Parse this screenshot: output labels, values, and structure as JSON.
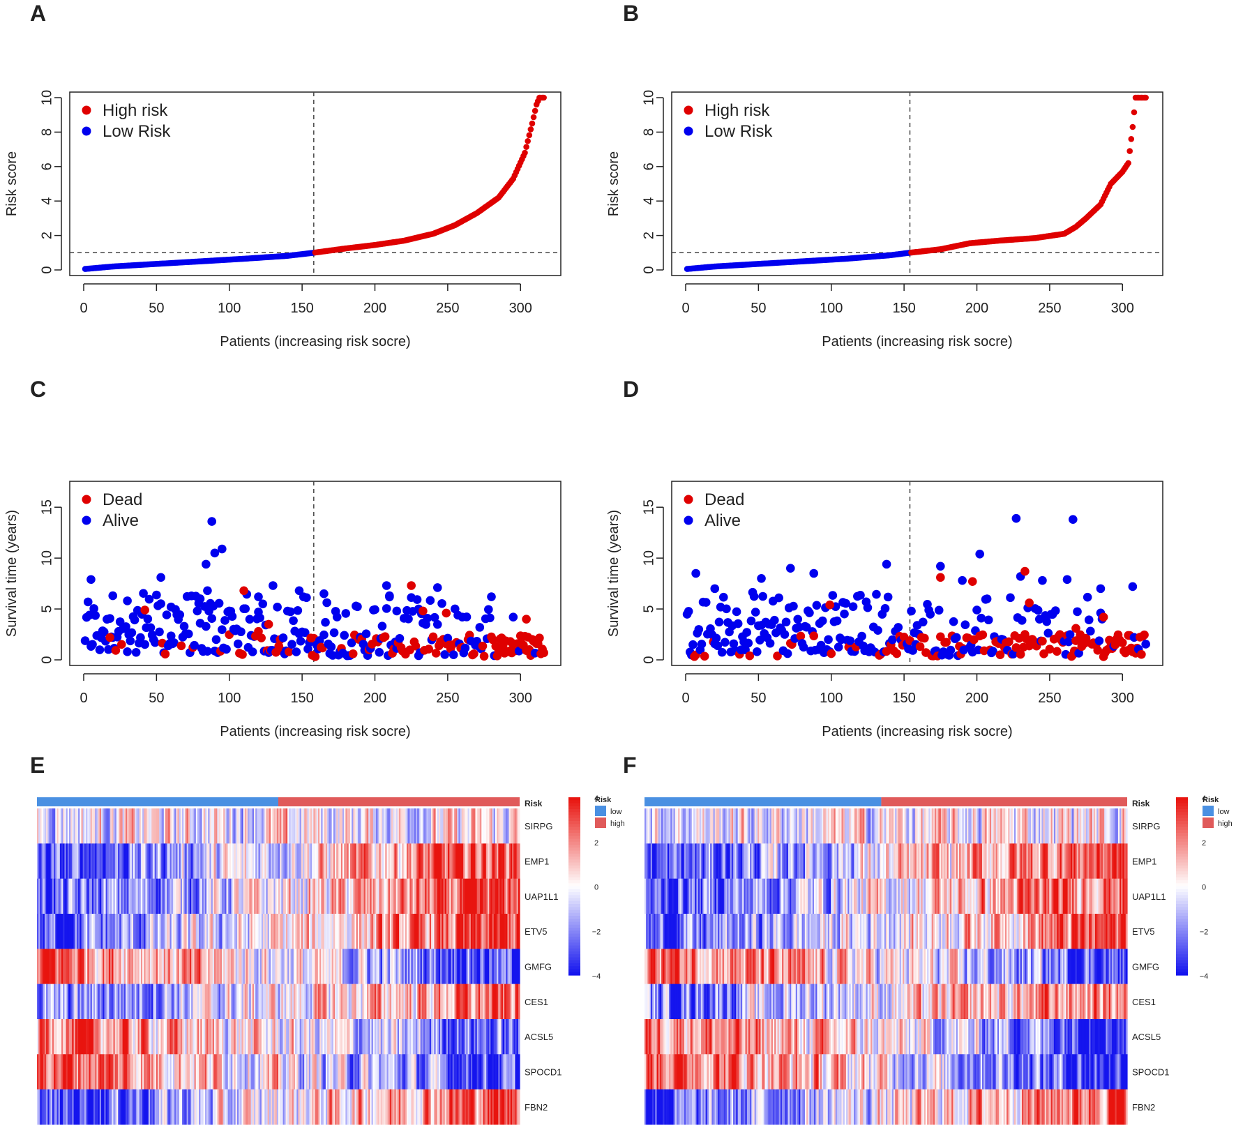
{
  "colors": {
    "high": "#DF0000",
    "low": "#0000EE",
    "risk_low": "#4A90E2",
    "risk_high": "#E05A5A",
    "heat_low": "#1515EE",
    "heat_mid": "#FFFFFF",
    "heat_high": "#E8140F"
  },
  "panels": {
    "A": "A",
    "B": "B",
    "C": "C",
    "D": "D",
    "E": "E",
    "F": "F"
  },
  "chart_data": [
    {
      "panel": "A",
      "type": "scatter",
      "xlabel": "Patients (increasing risk socre)",
      "ylabel": "Risk score",
      "xlim": [
        0,
        320
      ],
      "ylim": [
        0,
        10
      ],
      "xticks": [
        0,
        50,
        100,
        150,
        200,
        250,
        300
      ],
      "yticks": [
        0,
        2,
        4,
        6,
        8,
        10
      ],
      "cutoff_x": 158,
      "cutoff_y": 1.0,
      "legend": [
        "High risk",
        "Low Risk"
      ],
      "series": [
        {
          "name": "Low Risk",
          "x_range": [
            1,
            158
          ],
          "curve": [
            [
              0,
              0.05
            ],
            [
              20,
              0.2
            ],
            [
              50,
              0.35
            ],
            [
              80,
              0.5
            ],
            [
              110,
              0.65
            ],
            [
              140,
              0.82
            ],
            [
              158,
              1.0
            ]
          ]
        },
        {
          "name": "High risk",
          "x_range": [
            159,
            316
          ],
          "curve": [
            [
              158,
              1.0
            ],
            [
              180,
              1.25
            ],
            [
              200,
              1.45
            ],
            [
              220,
              1.7
            ],
            [
              240,
              2.1
            ],
            [
              255,
              2.6
            ],
            [
              270,
              3.3
            ],
            [
              285,
              4.2
            ],
            [
              295,
              5.3
            ],
            [
              303,
              6.8
            ],
            [
              308,
              8.5
            ],
            [
              311,
              9.6
            ],
            [
              313,
              10.0
            ],
            [
              316,
              10.0
            ]
          ]
        }
      ]
    },
    {
      "panel": "B",
      "type": "scatter",
      "xlabel": "Patients (increasing risk socre)",
      "ylabel": "Risk score",
      "xlim": [
        0,
        320
      ],
      "ylim": [
        0,
        10
      ],
      "xticks": [
        0,
        50,
        100,
        150,
        200,
        250,
        300
      ],
      "yticks": [
        0,
        2,
        4,
        6,
        8,
        10
      ],
      "cutoff_x": 154,
      "cutoff_y": 1.0,
      "legend": [
        "High risk",
        "Low Risk"
      ],
      "series": [
        {
          "name": "Low Risk",
          "x_range": [
            1,
            154
          ],
          "curve": [
            [
              0,
              0.05
            ],
            [
              20,
              0.2
            ],
            [
              50,
              0.35
            ],
            [
              80,
              0.5
            ],
            [
              110,
              0.65
            ],
            [
              140,
              0.85
            ],
            [
              154,
              1.0
            ]
          ]
        },
        {
          "name": "High risk",
          "x_range": [
            155,
            316
          ],
          "curve": [
            [
              154,
              1.0
            ],
            [
              175,
              1.2
            ],
            [
              195,
              1.55
            ],
            [
              215,
              1.7
            ],
            [
              240,
              1.85
            ],
            [
              260,
              2.1
            ],
            [
              268,
              2.5
            ],
            [
              275,
              3.0
            ],
            [
              285,
              3.8
            ],
            [
              292,
              5.0
            ],
            [
              300,
              5.7
            ],
            [
              304,
              6.2
            ],
            [
              307,
              8.3
            ],
            [
              309,
              10.0
            ],
            [
              316,
              10.0
            ]
          ]
        }
      ]
    },
    {
      "panel": "C",
      "type": "scatter",
      "xlabel": "Patients (increasing risk socre)",
      "ylabel": "Survival time (years)",
      "xlim": [
        0,
        320
      ],
      "ylim": [
        0,
        17
      ],
      "yticks": [
        0,
        5,
        10,
        15
      ],
      "xticks": [
        0,
        50,
        100,
        150,
        200,
        250,
        300
      ],
      "cutoff_x": 158,
      "legend": [
        "Dead",
        "Alive"
      ],
      "series": [
        {
          "name": "Alive",
          "points": [
            [
              5,
              7.9
            ],
            [
              53,
              8.1
            ],
            [
              84,
              9.4
            ],
            [
              88,
              13.6
            ],
            [
              90,
              10.5
            ],
            [
              95,
              10.9
            ],
            [
              85,
              6.8
            ],
            [
              130,
              7.3
            ],
            [
              148,
              6.8
            ],
            [
              165,
              6.5
            ],
            [
              208,
              7.3
            ],
            [
              243,
              7.1
            ],
            [
              280,
              6.2
            ],
            [
              80,
              6.0
            ],
            [
              20,
              6.3
            ],
            [
              30,
              5.8
            ],
            [
              60,
              5.2
            ],
            [
              100,
              4.8
            ],
            [
              120,
              6.2
            ],
            [
              210,
              6.3
            ],
            [
              215,
              4.8
            ],
            [
              230,
              5.0
            ],
            [
              260,
              4.2
            ],
            [
              295,
              4.2
            ]
          ]
        },
        {
          "name": "Dead",
          "points": [
            [
              18,
              2.2
            ],
            [
              42,
              4.9
            ],
            [
              110,
              6.8
            ],
            [
              127,
              3.5
            ],
            [
              225,
              7.3
            ],
            [
              233,
              4.8
            ],
            [
              249,
              4.6
            ],
            [
              304,
              4.0
            ],
            [
              120,
              2.8
            ],
            [
              295,
              1.5
            ]
          ]
        }
      ]
    },
    {
      "panel": "D",
      "type": "scatter",
      "xlabel": "Patients (increasing risk socre)",
      "ylabel": "Survival time (years)",
      "xlim": [
        0,
        320
      ],
      "ylim": [
        0,
        17
      ],
      "yticks": [
        0,
        5,
        10,
        15
      ],
      "xticks": [
        0,
        50,
        100,
        150,
        200,
        250,
        300
      ],
      "cutoff_x": 154,
      "legend": [
        "Dead",
        "Alive"
      ],
      "series": [
        {
          "name": "Alive",
          "points": [
            [
              7,
              8.5
            ],
            [
              52,
              8.0
            ],
            [
              72,
              9.0
            ],
            [
              88,
              8.5
            ],
            [
              138,
              9.4
            ],
            [
              175,
              9.2
            ],
            [
              202,
              10.4
            ],
            [
              227,
              13.9
            ],
            [
              266,
              13.8
            ],
            [
              230,
              8.2
            ],
            [
              262,
              7.9
            ],
            [
              285,
              7.0
            ],
            [
              307,
              7.2
            ],
            [
              20,
              7.0
            ],
            [
              190,
              7.8
            ],
            [
              245,
              7.8
            ]
          ]
        },
        {
          "name": "Dead",
          "points": [
            [
              99,
              5.4
            ],
            [
              175,
              8.1
            ],
            [
              197,
              7.7
            ],
            [
              233,
              8.7
            ],
            [
              236,
              5.6
            ],
            [
              287,
              4.2
            ],
            [
              268,
              3.1
            ]
          ]
        }
      ]
    },
    {
      "panel": "E",
      "type": "heatmap",
      "rows": [
        "SIRPG",
        "EMP1",
        "UAP1L1",
        "ETV5",
        "GMFG",
        "CES1",
        "ACSL5",
        "SPOCD1",
        "FBN2"
      ],
      "annotation_label": "Risk",
      "annotation_levels": [
        "low",
        "high"
      ],
      "low_fraction": 0.5,
      "row_trend": [
        0,
        1,
        0.9,
        0.9,
        -0.9,
        0.7,
        -0.8,
        -1,
        1
      ],
      "colorbar_ticks": [
        4,
        2,
        0,
        -2,
        -4
      ]
    },
    {
      "panel": "F",
      "type": "heatmap",
      "rows": [
        "SIRPG",
        "EMP1",
        "UAP1L1",
        "ETV5",
        "GMFG",
        "CES1",
        "ACSL5",
        "SPOCD1",
        "FBN2"
      ],
      "annotation_label": "Risk",
      "annotation_levels": [
        "low",
        "high"
      ],
      "low_fraction": 0.49,
      "row_trend": [
        0.1,
        1,
        0.9,
        0.9,
        -0.9,
        0.7,
        -0.8,
        -1,
        1
      ],
      "colorbar_ticks": [
        4,
        2,
        0,
        -2,
        -4
      ]
    }
  ]
}
